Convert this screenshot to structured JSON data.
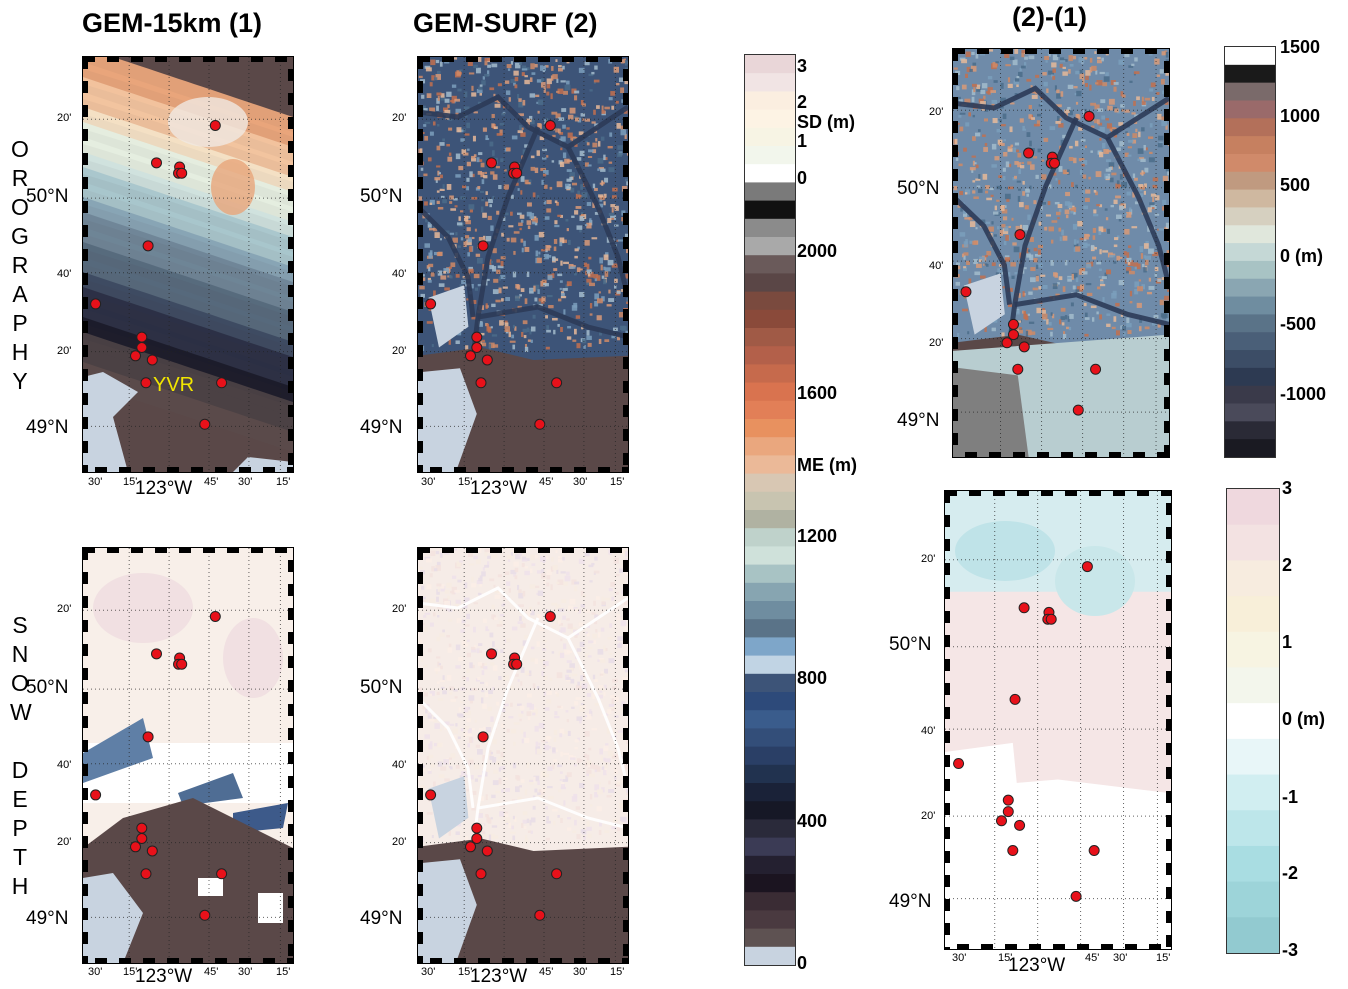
{
  "columns": {
    "gem15": "GEM-15km (1)",
    "surf": "GEM-SURF (2)",
    "diff": "(2)-(1)"
  },
  "rows": {
    "orography": [
      "O",
      "R",
      "O",
      "G",
      "R",
      "A",
      "P",
      "H",
      "Y"
    ],
    "snow_depth": [
      "S",
      "N",
      "O",
      "W",
      "",
      "D",
      "E",
      "P",
      "T",
      "H"
    ]
  },
  "airport_label": "YVR",
  "axes": {
    "lat_major_50": "50°N",
    "lat_major_49": "49°N",
    "lat_minor": [
      "20'",
      "40'",
      "20'"
    ],
    "lon_minor": [
      "30'",
      "15'",
      "45'",
      "30'",
      "15'"
    ],
    "lon_major": "123°W"
  },
  "colorbar_main": {
    "sd_ticks": [
      "3",
      "2",
      "1",
      "0"
    ],
    "sd_unit": "SD (m)",
    "me_ticks": [
      "2000",
      "1600",
      "1200",
      "800",
      "400",
      "0"
    ],
    "me_unit": "ME (m)"
  },
  "colorbar_diff_orography": {
    "ticks": [
      "1500",
      "1000",
      "500",
      "0 (m)",
      "-500",
      "-1000"
    ]
  },
  "colorbar_diff_snow": {
    "ticks": [
      "3",
      "2",
      "1",
      "0 (m)",
      "-1",
      "-2",
      "-3"
    ]
  },
  "colors": {
    "station": "#e8111a",
    "airport_label": "#f2e600",
    "water": "#c8d3e0",
    "lowland": "#5a4848"
  }
}
